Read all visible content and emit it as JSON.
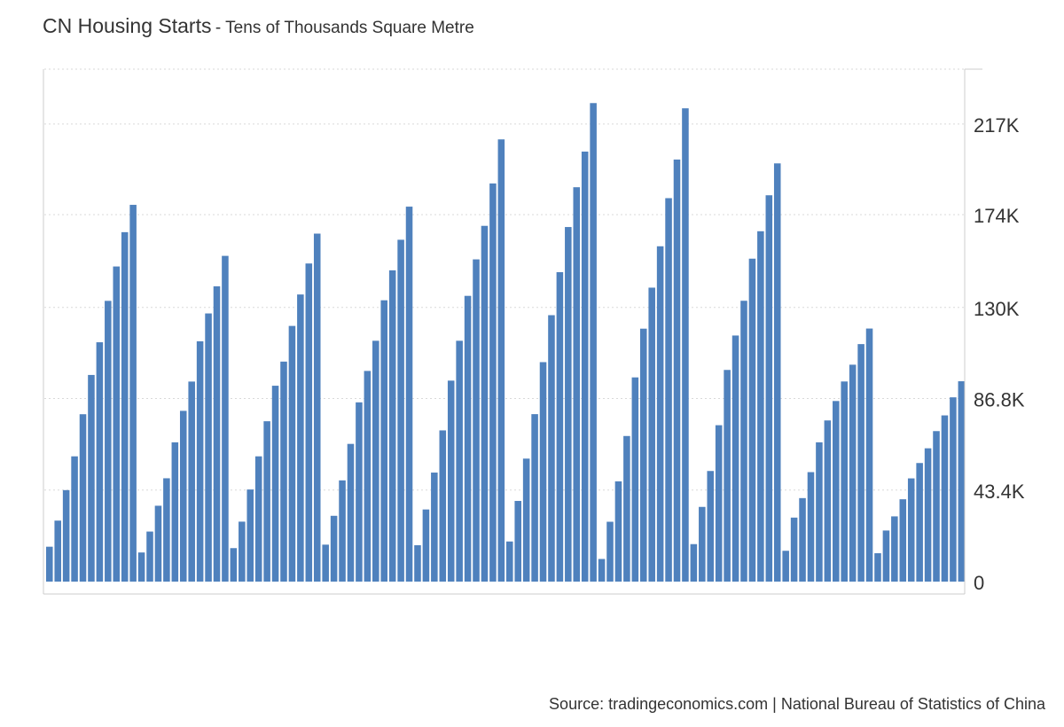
{
  "header": {
    "title": "CN Housing Starts",
    "subtitle": "- Tens of Thousands Square Metre"
  },
  "footer": {
    "source": "Source: tradingeconomics.com | National Bureau of Statistics of China"
  },
  "colors": {
    "bar": "#4f81bd",
    "grid": "#d9d9d9",
    "text": "#333333"
  },
  "chart_data": {
    "type": "bar",
    "ylim": [
      0,
      243000
    ],
    "ytick_values": [
      0,
      43400,
      86800,
      130000,
      174000,
      217000
    ],
    "ytick_labels": [
      "0",
      "43.4K",
      "86.8K",
      "130K",
      "174K",
      "217K"
    ],
    "y_axis_position": "right",
    "grid": true,
    "legend": "none",
    "values": [
      16540,
      28920,
      43380,
      59400,
      79370,
      97990,
      113490,
      133130,
      149430,
      165700,
      178660,
      13810,
      23730,
      35970,
      49000,
      66040,
      80970,
      94860,
      113950,
      127160,
      140030,
      154460,
      15870,
      28430,
      43670,
      59400,
      76040,
      92880,
      104320,
      121240,
      136150,
      150850,
      165010,
      17520,
      31200,
      48000,
      65300,
      85000,
      99900,
      114200,
      133400,
      147600,
      162100,
      177800,
      17260,
      34200,
      51700,
      71700,
      95300,
      114200,
      135500,
      152800,
      168700,
      188800,
      209700,
      19020,
      38250,
      58320,
      79410,
      104070,
      126330,
      146730,
      168140,
      187010,
      203910,
      226910,
      10730,
      28380,
      47540,
      69040,
      96830,
      119940,
      139390,
      159010,
      181830,
      200140,
      224430,
      17770,
      35420,
      52450,
      74160,
      100370,
      116690,
      133170,
      153130,
      166140,
      183200,
      198320,
      14610,
      30350,
      39590,
      51910,
      66050,
      76420,
      85630,
      94890,
      102850,
      112620,
      120000,
      13460,
      24220,
      30930,
      39040,
      48950,
      56230,
      63210,
      71360,
      78810,
      87380,
      95000
    ]
  }
}
